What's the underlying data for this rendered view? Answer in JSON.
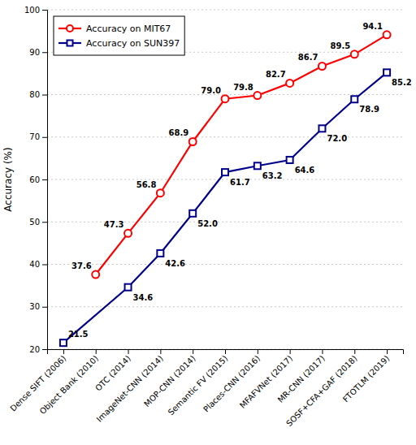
{
  "chart_data": {
    "type": "line",
    "categories": [
      "Dense SIFT (2006)",
      "Object Bank (2010)",
      "OTC (2014)",
      "ImageNet-CNN (2014)",
      "MOP-CNN (2014)",
      "Semantic FV (2015)",
      "Places-CNN (2016)",
      "MFAFVNet (2017)",
      "MR-CNN (2017)",
      "SOSF+CFA+GAF (2018)",
      "FTOTLM (2019)"
    ],
    "series": [
      {
        "name": "Accuracy on MIT67",
        "color": "#ff0000",
        "marker": "circle",
        "values": [
          null,
          37.6,
          47.3,
          56.8,
          68.9,
          79.0,
          79.8,
          82.7,
          86.7,
          89.5,
          94.1
        ],
        "value_labels": [
          null,
          "37.6",
          "47.3",
          "56.8",
          "68.9",
          "79.0",
          "79.8",
          "82.7",
          "86.7",
          "89.5",
          "94.1"
        ]
      },
      {
        "name": "Accuracy on SUN397",
        "color": "#00008b",
        "marker": "square",
        "values": [
          21.5,
          null,
          34.6,
          42.6,
          52.0,
          61.7,
          63.2,
          64.6,
          72.0,
          78.9,
          85.2
        ],
        "value_labels": [
          "21.5",
          null,
          "34.6",
          "42.6",
          "52.0",
          "61.7",
          "63.2",
          "64.6",
          "72.0",
          "78.9",
          "85.2"
        ]
      }
    ],
    "ylabel": "Accuracy (%)",
    "ylim": [
      20,
      100
    ],
    "yticks": [
      20,
      30,
      40,
      50,
      60,
      70,
      80,
      90,
      100
    ],
    "grid": true,
    "legend": "upper left",
    "data_labels": true
  }
}
